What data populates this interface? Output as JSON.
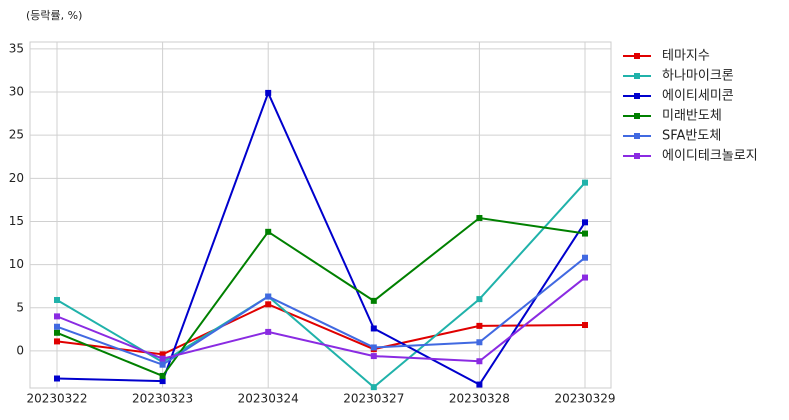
{
  "chart_data": {
    "type": "line",
    "y_label": "(등락률, %)",
    "x": [
      "20230322",
      "20230323",
      "20230324",
      "20230327",
      "20230328",
      "20230329"
    ],
    "series": [
      {
        "name": "테마지수",
        "color": "#e00000",
        "values": [
          1.1,
          -0.4,
          5.4,
          0.2,
          2.9,
          3.0
        ]
      },
      {
        "name": "하나마이크론",
        "color": "#20b2aa",
        "values": [
          5.9,
          -1.3,
          6.3,
          -4.2,
          6.0,
          19.5
        ]
      },
      {
        "name": "에이티세미콘",
        "color": "#0000cd",
        "values": [
          -3.2,
          -3.5,
          29.9,
          2.6,
          -3.9,
          14.9
        ]
      },
      {
        "name": "미래반도체",
        "color": "#008000",
        "values": [
          2.1,
          -2.9,
          13.8,
          5.8,
          15.4,
          13.6
        ]
      },
      {
        "name": "SFA반도체",
        "color": "#4169e1",
        "values": [
          2.8,
          -1.6,
          6.3,
          0.4,
          1.0,
          10.8
        ]
      },
      {
        "name": "에이디테크놀로지",
        "color": "#8a2be2",
        "values": [
          4.0,
          -0.9,
          2.2,
          -0.6,
          -1.2,
          8.5
        ]
      }
    ],
    "ylim": [
      -4.3,
      35.8
    ],
    "yticks": [
      0,
      5,
      10,
      15,
      20,
      25,
      30,
      35
    ],
    "grid": true,
    "legend": "outside-right"
  }
}
